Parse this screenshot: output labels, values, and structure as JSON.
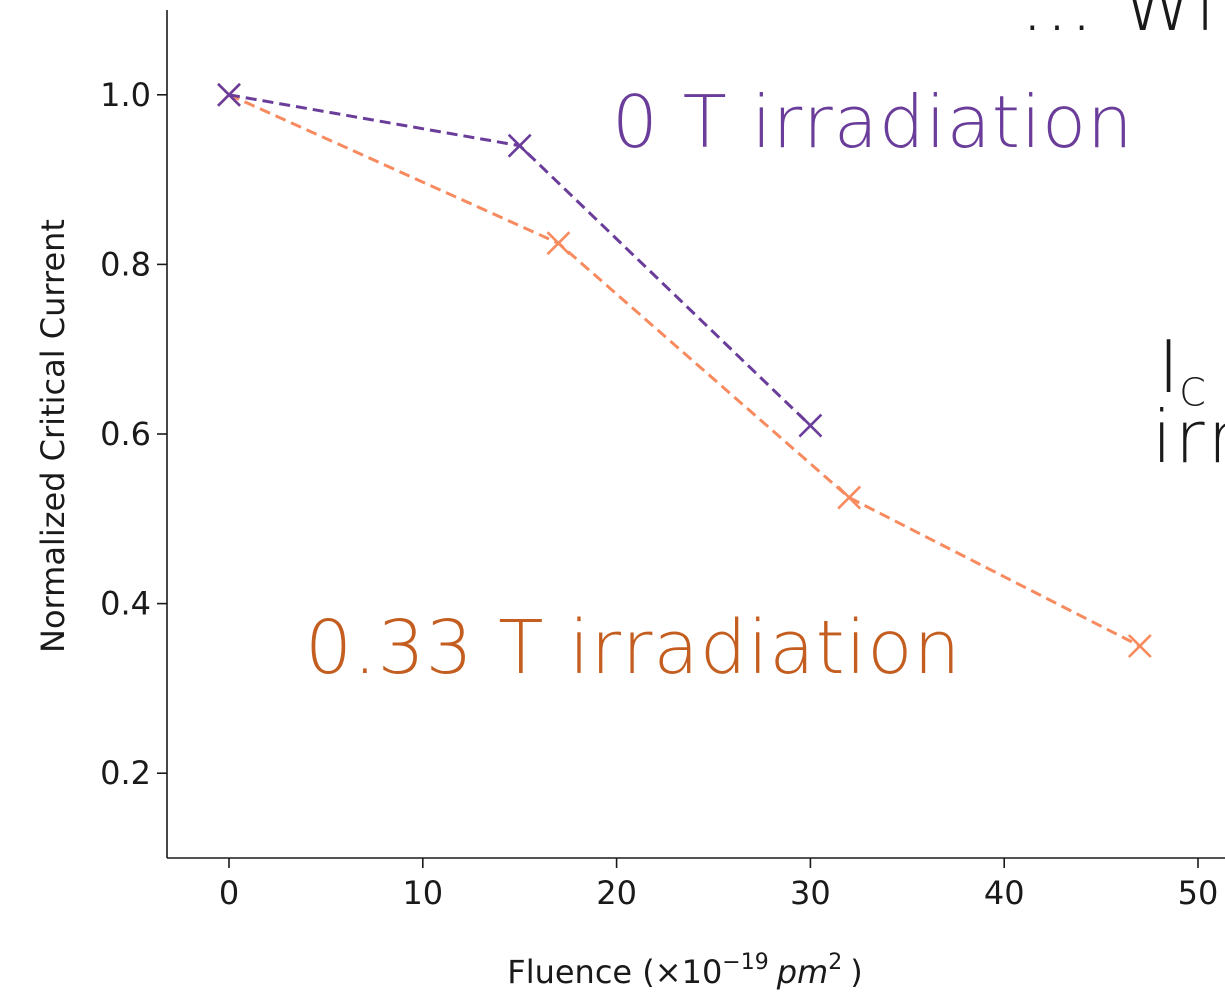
{
  "colors": {
    "series_0t": "#6a3d9a",
    "series_033t": "#f78b5f",
    "label_0t": "#6a3d9a",
    "label_033t": "#c45e20",
    "axis": "#1a1a1a"
  },
  "chart_data": {
    "type": "line",
    "xlabel_main": "Fluence (×10",
    "xlabel_exp": "−19",
    "xlabel_unit": "pm",
    "xlabel_unit_exp": "2",
    "xlabel_close": ")",
    "ylabel": "Normalized Critical Current",
    "xlim": [
      -3.3,
      50
    ],
    "ylim": [
      0.1,
      1.1
    ],
    "xticks": [
      0,
      10,
      20,
      30,
      40,
      50
    ],
    "yticks": [
      0.2,
      0.4,
      0.6,
      0.8,
      1.0
    ],
    "xtick_labels": [
      "0",
      "10",
      "20",
      "30",
      "40",
      "50"
    ],
    "ytick_labels": [
      "0.2",
      "0.4",
      "0.6",
      "0.8",
      "1.0"
    ],
    "series": [
      {
        "name": "0 T irradiation",
        "color": "#6a3d9a",
        "marker": "x",
        "linestyle": "dashed",
        "x": [
          0,
          15,
          30
        ],
        "y": [
          1.0,
          0.94,
          0.61
        ]
      },
      {
        "name": "0.33 T irradiation",
        "color": "#f78b5f",
        "marker": "x",
        "linestyle": "dashed",
        "x": [
          0,
          17,
          32,
          47
        ],
        "y": [
          1.0,
          0.825,
          0.525,
          0.35
        ]
      }
    ]
  },
  "annotations": {
    "label_0t": "0 T irradiation",
    "label_033t": "0.33 T irradiation",
    "top_right_fragment": "… Wi",
    "ic_main": "I",
    "ic_sub": "C",
    "irr_fragment": "irr"
  }
}
